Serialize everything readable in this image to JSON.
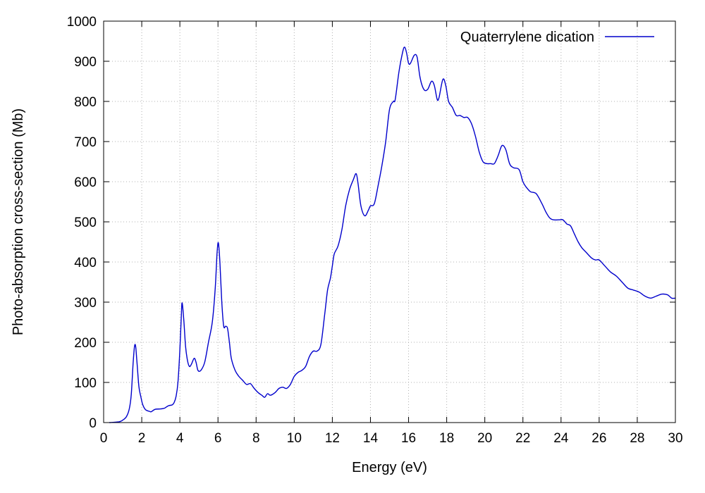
{
  "chart_data": {
    "type": "line",
    "xlabel": "Energy (eV)",
    "ylabel": "Photo-absorption cross-section (Mb)",
    "xlim": [
      0,
      30
    ],
    "ylim": [
      0,
      1000
    ],
    "xticks": [
      0,
      2,
      4,
      6,
      8,
      10,
      12,
      14,
      16,
      18,
      20,
      22,
      24,
      26,
      28,
      30
    ],
    "yticks": [
      0,
      100,
      200,
      300,
      400,
      500,
      600,
      700,
      800,
      900,
      1000
    ],
    "grid": true,
    "legend_position": "top-right",
    "series": [
      {
        "name": "Quaterrylene dication",
        "color": "#0000cc",
        "points": [
          [
            0.3,
            0
          ],
          [
            0.8,
            2
          ],
          [
            1.0,
            6
          ],
          [
            1.2,
            15
          ],
          [
            1.35,
            35
          ],
          [
            1.45,
            70
          ],
          [
            1.55,
            150
          ],
          [
            1.62,
            190
          ],
          [
            1.68,
            190
          ],
          [
            1.75,
            150
          ],
          [
            1.85,
            90
          ],
          [
            1.95,
            65
          ],
          [
            2.05,
            45
          ],
          [
            2.2,
            32
          ],
          [
            2.4,
            28
          ],
          [
            2.5,
            27
          ],
          [
            2.7,
            33
          ],
          [
            3.0,
            34
          ],
          [
            3.2,
            36
          ],
          [
            3.4,
            42
          ],
          [
            3.6,
            44
          ],
          [
            3.7,
            50
          ],
          [
            3.8,
            65
          ],
          [
            3.9,
            100
          ],
          [
            4.0,
            180
          ],
          [
            4.08,
            270
          ],
          [
            4.12,
            298
          ],
          [
            4.2,
            260
          ],
          [
            4.3,
            190
          ],
          [
            4.4,
            155
          ],
          [
            4.5,
            140
          ],
          [
            4.6,
            145
          ],
          [
            4.75,
            160
          ],
          [
            4.85,
            150
          ],
          [
            4.95,
            130
          ],
          [
            5.1,
            130
          ],
          [
            5.3,
            150
          ],
          [
            5.5,
            200
          ],
          [
            5.7,
            250
          ],
          [
            5.85,
            330
          ],
          [
            5.95,
            420
          ],
          [
            6.02,
            448
          ],
          [
            6.1,
            400
          ],
          [
            6.2,
            300
          ],
          [
            6.3,
            240
          ],
          [
            6.4,
            240
          ],
          [
            6.5,
            235
          ],
          [
            6.6,
            200
          ],
          [
            6.7,
            160
          ],
          [
            6.9,
            130
          ],
          [
            7.1,
            115
          ],
          [
            7.3,
            105
          ],
          [
            7.5,
            95
          ],
          [
            7.7,
            97
          ],
          [
            7.9,
            85
          ],
          [
            8.1,
            75
          ],
          [
            8.3,
            68
          ],
          [
            8.45,
            63
          ],
          [
            8.6,
            72
          ],
          [
            8.75,
            68
          ],
          [
            9.0,
            75
          ],
          [
            9.2,
            85
          ],
          [
            9.4,
            88
          ],
          [
            9.6,
            85
          ],
          [
            9.8,
            95
          ],
          [
            10.0,
            115
          ],
          [
            10.2,
            125
          ],
          [
            10.4,
            130
          ],
          [
            10.6,
            140
          ],
          [
            10.8,
            165
          ],
          [
            11.0,
            178
          ],
          [
            11.2,
            178
          ],
          [
            11.4,
            195
          ],
          [
            11.6,
            270
          ],
          [
            11.75,
            330
          ],
          [
            11.9,
            360
          ],
          [
            12.0,
            390
          ],
          [
            12.1,
            420
          ],
          [
            12.3,
            440
          ],
          [
            12.5,
            480
          ],
          [
            12.7,
            540
          ],
          [
            12.9,
            580
          ],
          [
            13.1,
            605
          ],
          [
            13.25,
            620
          ],
          [
            13.35,
            595
          ],
          [
            13.5,
            540
          ],
          [
            13.7,
            515
          ],
          [
            13.9,
            530
          ],
          [
            14.0,
            540
          ],
          [
            14.2,
            545
          ],
          [
            14.4,
            590
          ],
          [
            14.6,
            640
          ],
          [
            14.8,
            700
          ],
          [
            15.0,
            780
          ],
          [
            15.2,
            800
          ],
          [
            15.3,
            805
          ],
          [
            15.5,
            875
          ],
          [
            15.7,
            925
          ],
          [
            15.8,
            935
          ],
          [
            15.9,
            920
          ],
          [
            16.0,
            895
          ],
          [
            16.1,
            895
          ],
          [
            16.3,
            915
          ],
          [
            16.45,
            910
          ],
          [
            16.6,
            860
          ],
          [
            16.8,
            830
          ],
          [
            17.0,
            830
          ],
          [
            17.2,
            850
          ],
          [
            17.35,
            840
          ],
          [
            17.5,
            805
          ],
          [
            17.6,
            810
          ],
          [
            17.8,
            855
          ],
          [
            17.95,
            840
          ],
          [
            18.1,
            800
          ],
          [
            18.3,
            785
          ],
          [
            18.5,
            765
          ],
          [
            18.7,
            765
          ],
          [
            18.9,
            760
          ],
          [
            19.1,
            760
          ],
          [
            19.3,
            745
          ],
          [
            19.5,
            715
          ],
          [
            19.7,
            675
          ],
          [
            19.9,
            650
          ],
          [
            20.1,
            645
          ],
          [
            20.3,
            645
          ],
          [
            20.5,
            645
          ],
          [
            20.7,
            665
          ],
          [
            20.9,
            690
          ],
          [
            21.1,
            680
          ],
          [
            21.3,
            645
          ],
          [
            21.5,
            635
          ],
          [
            21.8,
            630
          ],
          [
            22.0,
            600
          ],
          [
            22.2,
            585
          ],
          [
            22.4,
            575
          ],
          [
            22.7,
            570
          ],
          [
            23.0,
            545
          ],
          [
            23.2,
            525
          ],
          [
            23.4,
            510
          ],
          [
            23.6,
            505
          ],
          [
            23.9,
            505
          ],
          [
            24.1,
            505
          ],
          [
            24.3,
            495
          ],
          [
            24.5,
            490
          ],
          [
            24.7,
            470
          ],
          [
            24.9,
            450
          ],
          [
            25.1,
            435
          ],
          [
            25.3,
            425
          ],
          [
            25.6,
            410
          ],
          [
            25.8,
            405
          ],
          [
            26.0,
            405
          ],
          [
            26.3,
            390
          ],
          [
            26.6,
            375
          ],
          [
            26.9,
            365
          ],
          [
            27.2,
            350
          ],
          [
            27.5,
            335
          ],
          [
            27.8,
            330
          ],
          [
            28.1,
            325
          ],
          [
            28.4,
            315
          ],
          [
            28.7,
            310
          ],
          [
            29.0,
            315
          ],
          [
            29.3,
            320
          ],
          [
            29.6,
            318
          ],
          [
            29.8,
            310
          ],
          [
            30.0,
            310
          ]
        ]
      }
    ]
  }
}
